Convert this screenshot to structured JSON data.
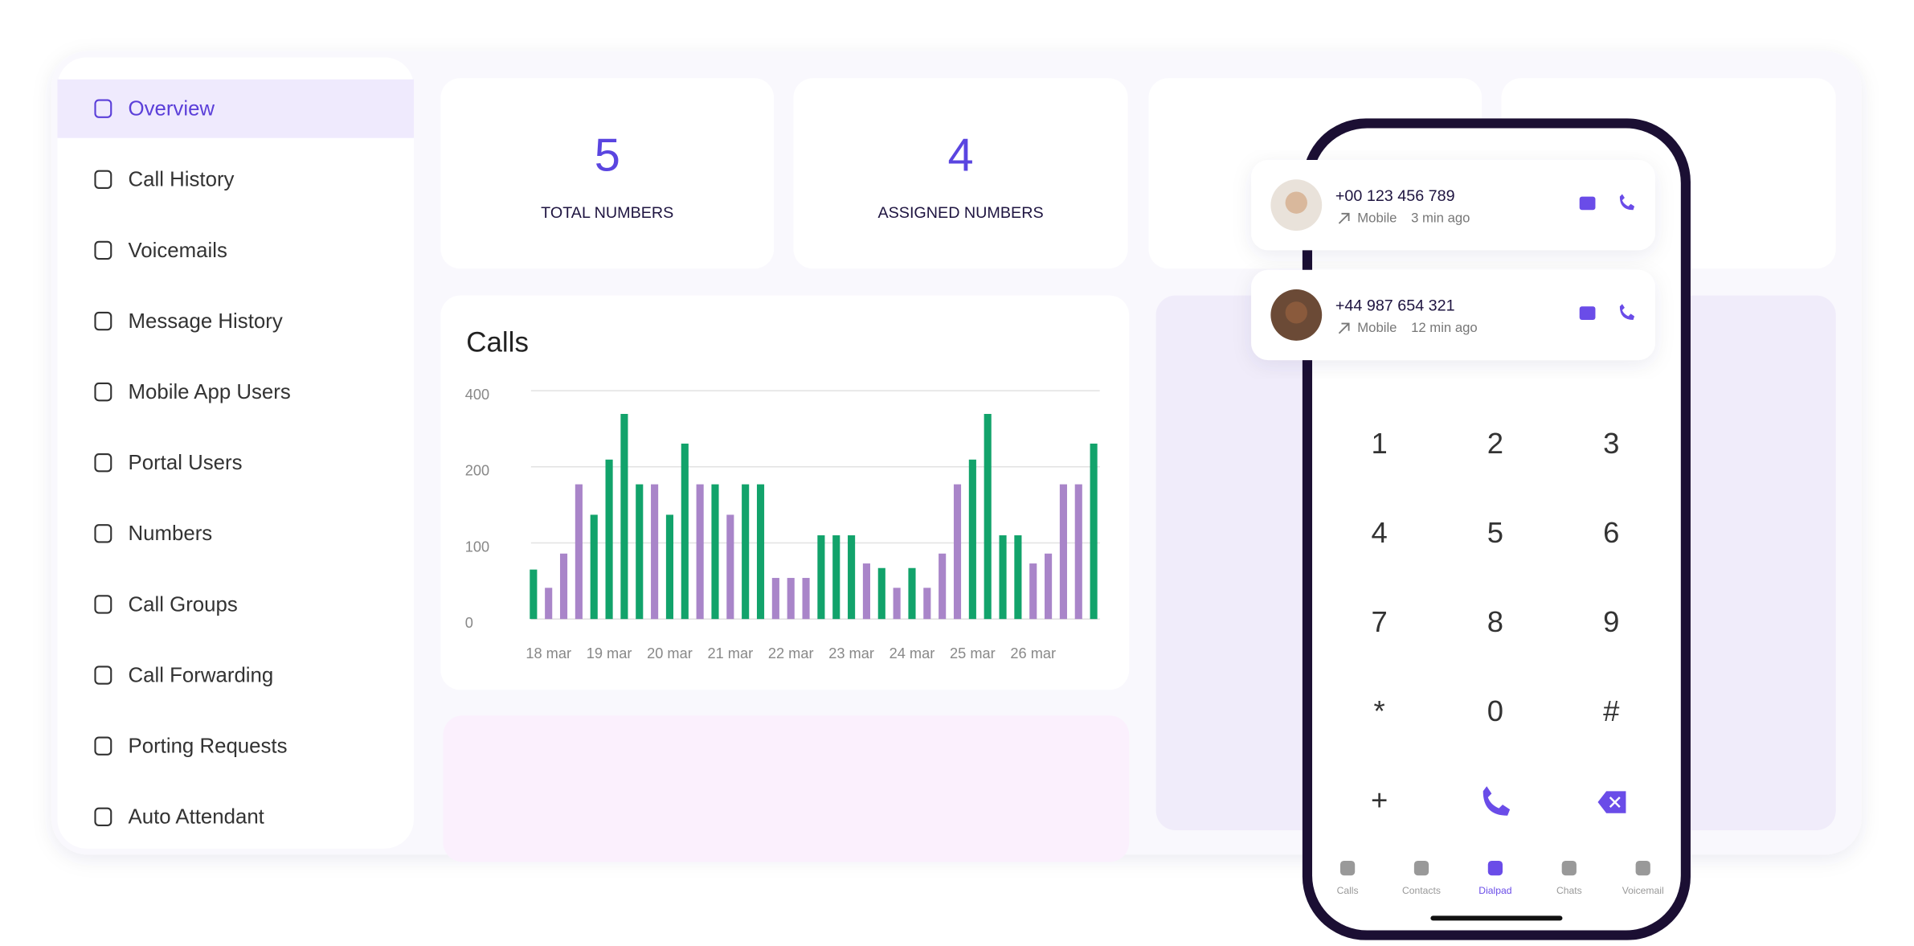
{
  "sidebar": {
    "items": [
      "Overview",
      "Call History",
      "Voicemails",
      "Message History",
      "Mobile App Users",
      "Portal Users",
      "Numbers",
      "Call Groups",
      "Call Forwarding",
      "Porting Requests",
      "Auto Attendant"
    ]
  },
  "stats": [
    {
      "value": 5,
      "label": "TOTAL NUMBERS"
    },
    {
      "value": 4,
      "label": "ASSIGNED NUMBERS"
    }
  ],
  "chart_data": {
    "type": "bar",
    "title": "Calls",
    "categories": [
      null,
      "18 mar",
      null,
      null,
      null,
      "19 mar",
      null,
      null,
      null,
      "20 mar",
      null,
      null,
      null,
      "21 mar",
      null,
      null,
      null,
      "22 mar",
      null,
      null,
      null,
      "23 mar",
      null,
      null,
      null,
      "24 mar",
      null,
      null,
      null,
      "25 mar",
      null,
      null,
      null,
      "26 mar",
      null,
      null,
      null,
      null
    ],
    "values": [
      65,
      41,
      86,
      177,
      137,
      219,
      339,
      177,
      177,
      137,
      261,
      177,
      177,
      137,
      177,
      177,
      54,
      54,
      54,
      110,
      110,
      110,
      73,
      67,
      41,
      67,
      41,
      86,
      177,
      219,
      339,
      110,
      110,
      73,
      86,
      177,
      177,
      261
    ],
    "colors": [
      "#12a36b",
      "#a985c9",
      "#a985c9",
      "#a985c9",
      "#12a36b",
      "#12a36b",
      "#12a36b",
      "#12a36b",
      "#a985c9",
      "#12a36b",
      "#12a36b",
      "#a985c9",
      "#12a36b",
      "#a985c9",
      "#12a36b",
      "#12a36b",
      "#a985c9",
      "#a985c9",
      "#a985c9",
      "#12a36b",
      "#12a36b",
      "#12a36b",
      "#a985c9",
      "#12a36b",
      "#a985c9",
      "#12a36b",
      "#a985c9",
      "#a985c9",
      "#a985c9",
      "#12a36b",
      "#12a36b",
      "#12a36b",
      "#12a36b",
      "#a985c9",
      "#a985c9",
      "#a985c9",
      "#a985c9",
      "#12a36b"
    ],
    "ylim": [
      0,
      400
    ],
    "yticks": [
      0,
      100,
      200,
      400
    ],
    "ytick_spacing": "even",
    "grid": true
  },
  "phone": {
    "contacts": [
      {
        "number": "+00 123 456 789",
        "type": "Mobile",
        "time": "3 min ago"
      },
      {
        "number": "+44 987 654 321",
        "type": "Mobile",
        "time": "12 min ago"
      }
    ],
    "keys": [
      "1",
      "2",
      "3",
      "4",
      "5",
      "6",
      "7",
      "8",
      "9",
      "*",
      "0",
      "#",
      "+"
    ],
    "nav": [
      "Calls",
      "Contacts",
      "Dialpad",
      "Chats",
      "Voicemail"
    ]
  }
}
